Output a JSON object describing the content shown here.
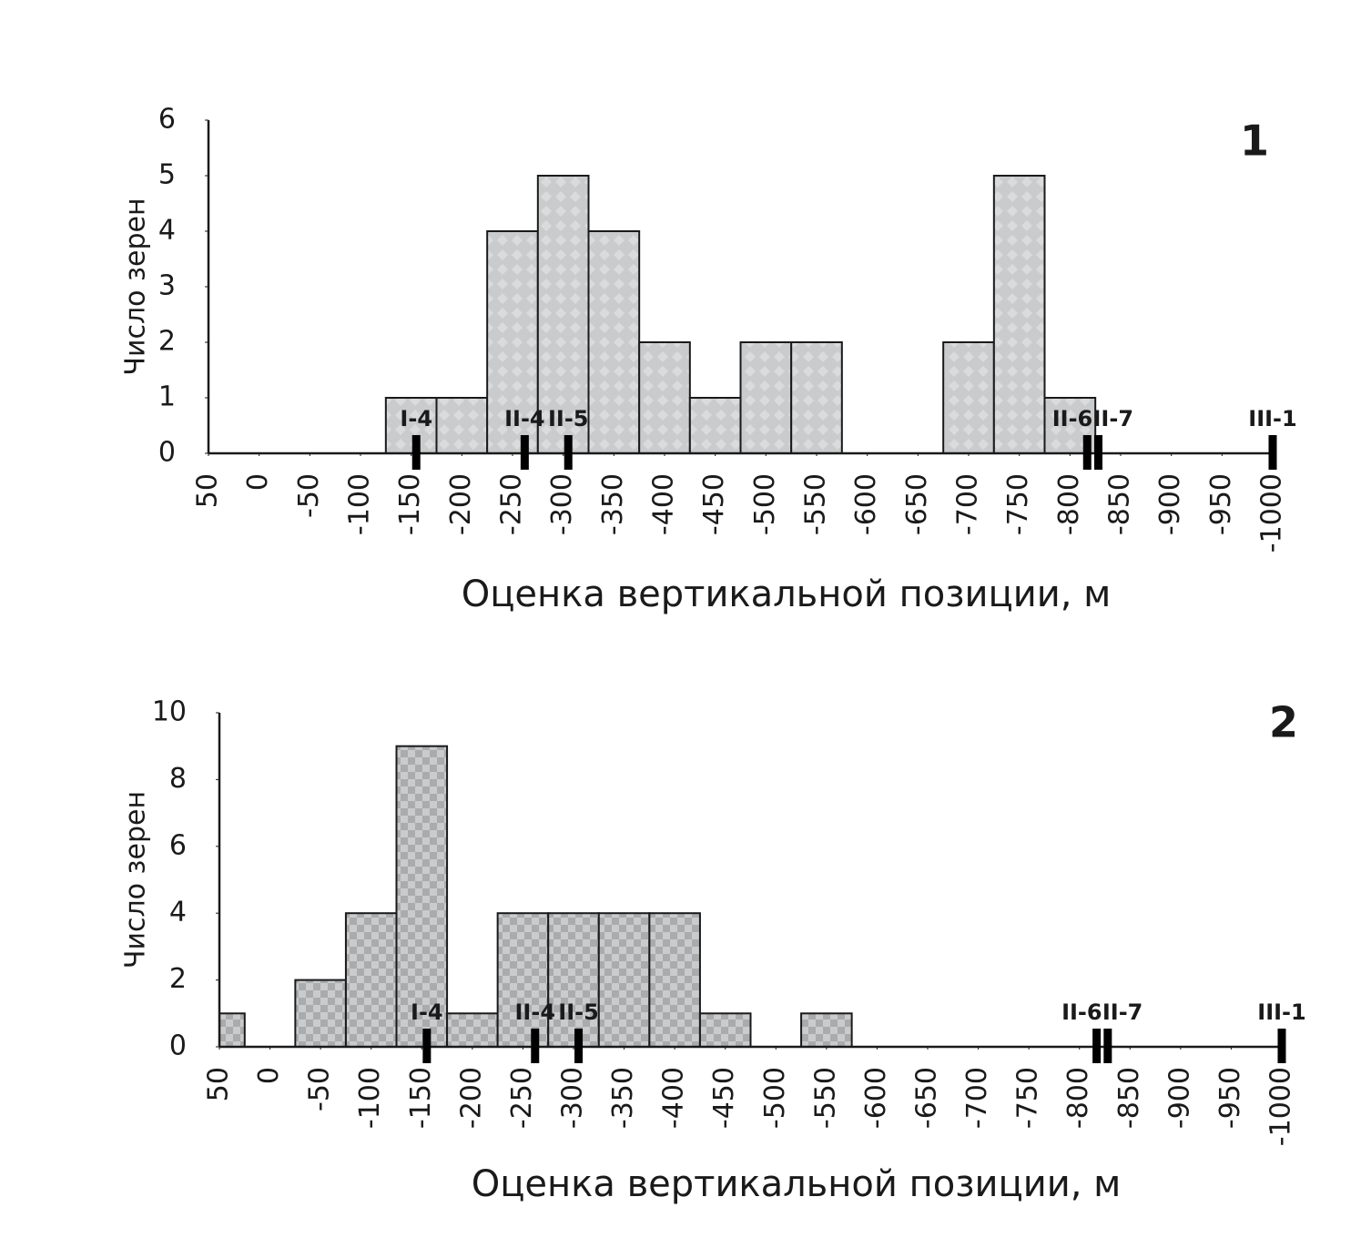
{
  "chart_data": [
    {
      "type": "histogram",
      "panel_label": "1",
      "x_label": "Оценка вертикальной позиции, м",
      "y_label": "Число зерен",
      "bins": [
        -125,
        -175,
        -225,
        -275,
        -325,
        -375,
        -425,
        -475,
        -525,
        -575,
        -625,
        -675,
        -725,
        -775,
        -825
      ],
      "values": [
        1,
        1,
        4,
        5,
        4,
        2,
        1,
        2,
        2,
        0,
        0,
        2,
        5,
        1
      ],
      "color": "#c9cbcd",
      "pattern": "diamond",
      "xlim": [
        50,
        -1000
      ],
      "xticks": [
        50,
        0,
        -50,
        -100,
        -150,
        -200,
        -250,
        -300,
        -350,
        -400,
        -450,
        -500,
        -550,
        -600,
        -650,
        -700,
        -750,
        -800,
        -850,
        -900,
        -950,
        -1000
      ],
      "ylim": [
        0,
        6
      ],
      "yticks": [
        0,
        1,
        2,
        3,
        4,
        5,
        6
      ],
      "markers": [
        {
          "label": "I-4",
          "x": -155
        },
        {
          "label": "II-4",
          "x": -262
        },
        {
          "label": "II-5",
          "x": -305
        },
        {
          "label": "II-6",
          "x": -817
        },
        {
          "label": "II-7",
          "x": -828
        },
        {
          "label": "III-1",
          "x": -1000
        }
      ]
    },
    {
      "type": "histogram",
      "panel_label": "2",
      "x_label": "Оценка вертикальной позиции, м",
      "y_label": "Число зерен",
      "bins": [
        75,
        25,
        -25,
        -75,
        -125,
        -175,
        -225,
        -275,
        -325,
        -375,
        -425,
        -475,
        -525,
        -575
      ],
      "values": [
        1,
        0,
        2,
        4,
        9,
        1,
        4,
        4,
        4,
        4,
        1,
        0,
        1
      ],
      "color": "#c9cbcd",
      "pattern": "checker",
      "xlim": [
        50,
        -1000
      ],
      "xticks": [
        50,
        0,
        -50,
        -100,
        -150,
        -200,
        -250,
        -300,
        -350,
        -400,
        -450,
        -500,
        -550,
        -600,
        -650,
        -700,
        -750,
        -800,
        -850,
        -900,
        -950,
        -1000
      ],
      "ylim": [
        0,
        10
      ],
      "yticks": [
        0,
        2,
        4,
        6,
        8,
        10
      ],
      "markers": [
        {
          "label": "I-4",
          "x": -155
        },
        {
          "label": "II-4",
          "x": -262
        },
        {
          "label": "II-5",
          "x": -305
        },
        {
          "label": "II-6",
          "x": -817
        },
        {
          "label": "II-7",
          "x": -828
        },
        {
          "label": "III-1",
          "x": -1000
        }
      ]
    }
  ]
}
